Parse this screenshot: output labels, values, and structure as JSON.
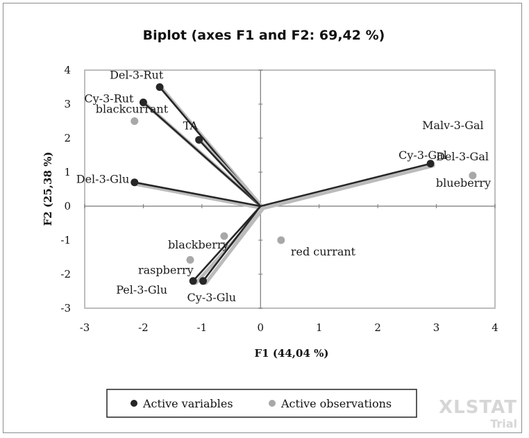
{
  "chart_data": {
    "type": "scatter",
    "title": "Biplot (axes F1 and F2: 69,42 %)",
    "xlabel": "F1 (44,04 %)",
    "ylabel": "F2 (25,38 %)",
    "xlim": [
      -3,
      4
    ],
    "ylim": [
      -3,
      4
    ],
    "xticks": [
      -3,
      -2,
      -1,
      0,
      1,
      2,
      3,
      4
    ],
    "yticks": [
      -3,
      -2,
      -1,
      0,
      1,
      2,
      3,
      4
    ],
    "grid": false,
    "legend_position": "bottom",
    "colors": {
      "variables": "#262626",
      "observations": "#a8a8a8"
    },
    "series": [
      {
        "name": "Active variables",
        "kind": "vectors",
        "points": [
          {
            "label": "Del-3-Rut",
            "x": -1.72,
            "y": 3.5
          },
          {
            "label": "Cy-3-Rut",
            "x": -2.0,
            "y": 3.05
          },
          {
            "label": "TA",
            "x": -1.05,
            "y": 1.95
          },
          {
            "label": "Del-3-Glu",
            "x": -2.15,
            "y": 0.7
          },
          {
            "label": "Malv-3-Gal",
            "x": 2.9,
            "y": 1.25
          },
          {
            "label": "Cy-3-Gal",
            "x": 2.9,
            "y": 1.25
          },
          {
            "label": "Del-3-Gal",
            "x": 2.9,
            "y": 1.25
          },
          {
            "label": "Pel-3-Glu",
            "x": -1.15,
            "y": -2.2
          },
          {
            "label": "Cy-3-Glu",
            "x": -0.98,
            "y": -2.2
          }
        ]
      },
      {
        "name": "Active observations",
        "kind": "points",
        "points": [
          {
            "label": "blackcurrant",
            "x": -2.15,
            "y": 2.5
          },
          {
            "label": "blueberry",
            "x": 3.62,
            "y": 0.9
          },
          {
            "label": "blackberry",
            "x": -0.62,
            "y": -0.88
          },
          {
            "label": "red currant",
            "x": 0.35,
            "y": -1.0
          },
          {
            "label": "raspberry",
            "x": -1.2,
            "y": -1.58
          }
        ]
      }
    ]
  },
  "watermark": {
    "line1": "XLSTAT",
    "line2": "Trial"
  }
}
